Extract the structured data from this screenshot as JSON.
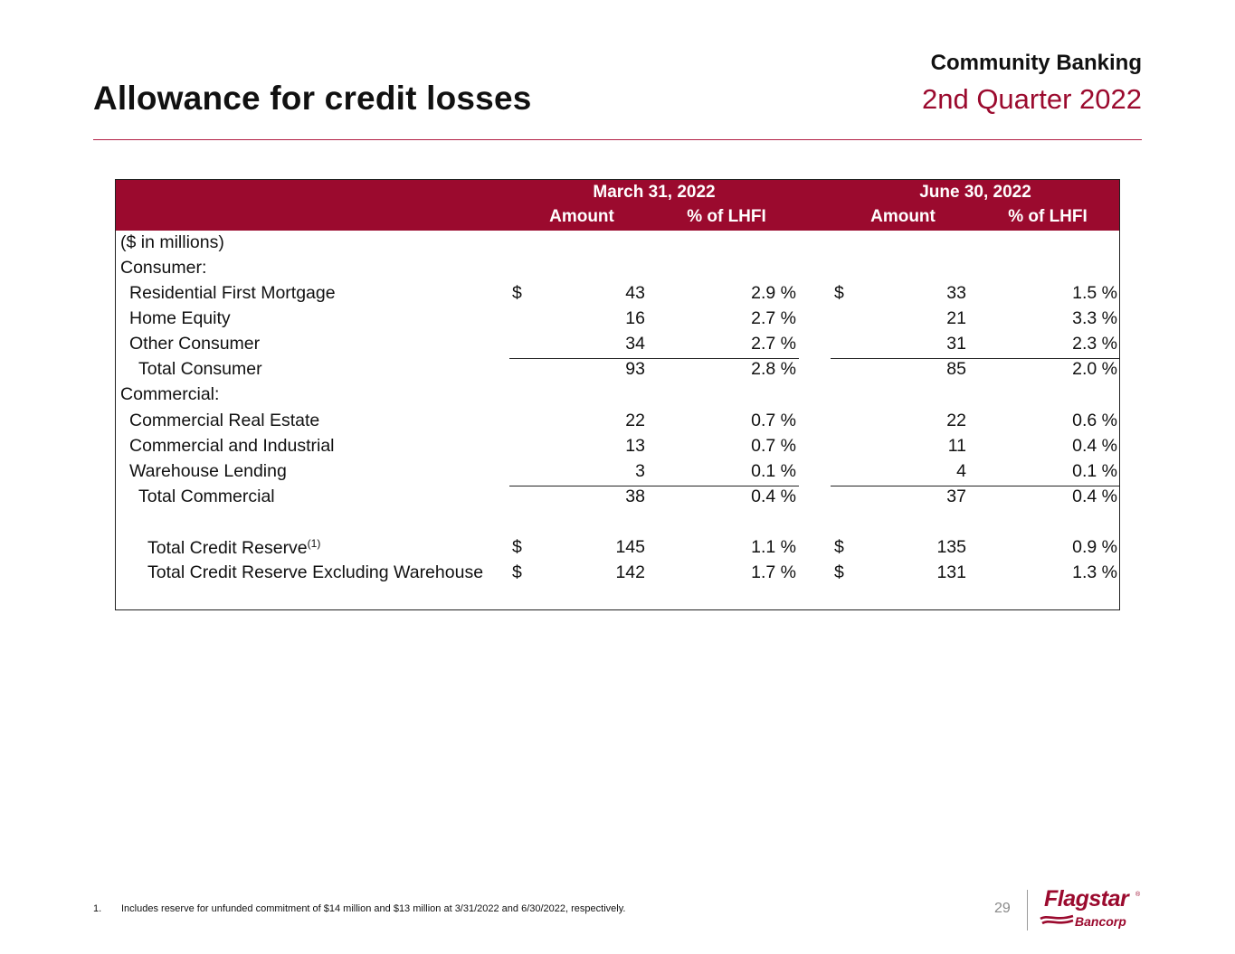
{
  "header": {
    "title": "Allowance for credit losses",
    "section": "Community Banking",
    "period": "2nd Quarter 2022"
  },
  "table": {
    "periods": [
      {
        "date": "March 31, 2022",
        "amount_header": "Amount",
        "pct_header": "% of LHFI"
      },
      {
        "date": "June 30, 2022",
        "amount_header": "Amount",
        "pct_header": "% of LHFI"
      }
    ],
    "units_note": "($ in millions)",
    "rows": [
      {
        "label": "Consumer:"
      },
      {
        "label": "Residential First Mortgage",
        "cur1": "$",
        "amt1": "43",
        "pct1": "2.9 %",
        "cur2": "$",
        "amt2": "33",
        "pct2": "1.5 %"
      },
      {
        "label": "Home Equity",
        "amt1": "16",
        "pct1": "2.7 %",
        "amt2": "21",
        "pct2": "3.3 %"
      },
      {
        "label": "Other Consumer",
        "amt1": "34",
        "pct1": "2.7 %",
        "amt2": "31",
        "pct2": "2.3 %"
      },
      {
        "label": "Total Consumer",
        "amt1": "93",
        "pct1": "2.8 %",
        "amt2": "85",
        "pct2": "2.0 %"
      },
      {
        "label": "Commercial:"
      },
      {
        "label": "Commercial Real Estate",
        "amt1": "22",
        "pct1": "0.7 %",
        "amt2": "22",
        "pct2": "0.6 %"
      },
      {
        "label": "Commercial and Industrial",
        "amt1": "13",
        "pct1": "0.7 %",
        "amt2": "11",
        "pct2": "0.4 %"
      },
      {
        "label": "Warehouse Lending",
        "amt1": "3",
        "pct1": "0.1 %",
        "amt2": "4",
        "pct2": "0.1 %"
      },
      {
        "label": "Total Commercial",
        "amt1": "38",
        "pct1": "0.4 %",
        "amt2": "37",
        "pct2": "0.4 %"
      },
      {
        "label": "Total Credit Reserve",
        "footnote_ref": "(1)",
        "cur1": "$",
        "amt1": "145",
        "pct1": "1.1 %",
        "cur2": "$",
        "amt2": "135",
        "pct2": "0.9 %"
      },
      {
        "label": "Total Credit Reserve Excluding Warehouse",
        "cur1": "$",
        "amt1": "142",
        "pct1": "1.7 %",
        "cur2": "$",
        "amt2": "131",
        "pct2": "1.3 %"
      }
    ]
  },
  "footnote": {
    "number": "1.",
    "text": "Includes reserve for unfunded commitment of $14 million and $13 million at 3/31/2022 and 6/30/2022, respectively."
  },
  "footer": {
    "page_number": "29",
    "logo_name": "Flagstar",
    "logo_sub": "Bancorp",
    "logo_mark": "®",
    "brand_color": "#9b0a2e"
  }
}
